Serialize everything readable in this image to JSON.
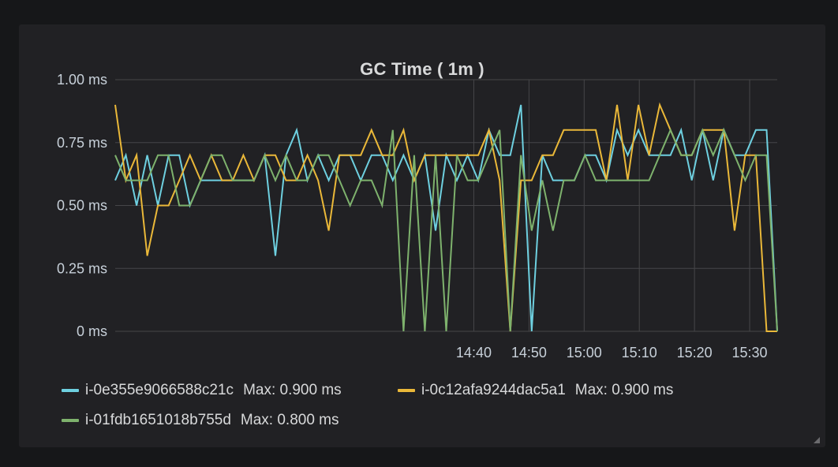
{
  "panel": {
    "title": "GC Time ( 1m )"
  },
  "colors": {
    "background": "#161719",
    "panel": "#212124",
    "grid": "#464649",
    "text": "#d8d9da"
  },
  "legend": [
    {
      "series": "i-0e355e9066588c21c",
      "max_label": "Max: 0.900 ms",
      "color": "#6ed0e0"
    },
    {
      "series": "i-0c12afa9244dac5a1",
      "max_label": "Max: 0.900 ms",
      "color": "#eab839"
    },
    {
      "series": "i-01fdb1651018b755d",
      "max_label": "Max: 0.800 ms",
      "color": "#7eb26d"
    }
  ],
  "chart_data": {
    "type": "line",
    "title": "GC Time ( 1m )",
    "xlabel": "",
    "ylabel": "",
    "ylim": [
      0,
      1
    ],
    "y_ticks": [
      0,
      0.25,
      0.5,
      0.75,
      1.0
    ],
    "y_tick_labels": [
      "0 ms",
      "0.25 ms",
      "0.50 ms",
      "0.75 ms",
      "1.00 ms"
    ],
    "x_ticks": [
      "14:40",
      "14:50",
      "15:00",
      "15:10",
      "15:20",
      "15:30"
    ],
    "x_start": "13:35",
    "x_end": "15:35",
    "grid": true,
    "legend_position": "bottom",
    "series": [
      {
        "name": "i-0e355e9066588c21c",
        "color": "#6ed0e0",
        "values": [
          0.6,
          0.7,
          0.5,
          0.7,
          0.5,
          0.7,
          0.7,
          0.5,
          0.6,
          0.6,
          0.6,
          0.6,
          0.6,
          0.6,
          0.7,
          0.3,
          0.7,
          0.8,
          0.6,
          0.7,
          0.6,
          0.7,
          0.7,
          0.6,
          0.7,
          0.7,
          0.6,
          0.7,
          0.6,
          0.7,
          0.4,
          0.7,
          0.6,
          0.7,
          0.6,
          0.8,
          0.7,
          0.7,
          0.9,
          0.0,
          0.7,
          0.6,
          0.6,
          0.6,
          0.7,
          0.7,
          0.6,
          0.8,
          0.7,
          0.8,
          0.7,
          0.7,
          0.7,
          0.8,
          0.6,
          0.8,
          0.6,
          0.8,
          0.7,
          0.7,
          0.8,
          0.8,
          0.0
        ]
      },
      {
        "name": "i-0c12afa9244dac5a1",
        "color": "#eab839",
        "values": [
          0.9,
          0.6,
          0.7,
          0.3,
          0.5,
          0.5,
          0.6,
          0.7,
          0.6,
          0.7,
          0.6,
          0.6,
          0.7,
          0.6,
          0.7,
          0.7,
          0.6,
          0.6,
          0.7,
          0.6,
          0.4,
          0.7,
          0.7,
          0.7,
          0.8,
          0.7,
          0.7,
          0.8,
          0.6,
          0.7,
          0.7,
          0.7,
          0.7,
          0.7,
          0.7,
          0.8,
          0.6,
          0.0,
          0.6,
          0.6,
          0.7,
          0.7,
          0.8,
          0.8,
          0.8,
          0.8,
          0.6,
          0.9,
          0.6,
          0.9,
          0.7,
          0.9,
          0.8,
          0.7,
          0.7,
          0.8,
          0.8,
          0.8,
          0.4,
          0.7,
          0.7,
          0.0,
          0.0
        ]
      },
      {
        "name": "i-01fdb1651018b755d",
        "color": "#7eb26d",
        "values": [
          0.7,
          0.6,
          0.6,
          0.6,
          0.7,
          0.7,
          0.5,
          0.5,
          0.6,
          0.7,
          0.7,
          0.6,
          0.6,
          0.6,
          0.7,
          0.6,
          0.7,
          0.6,
          0.6,
          0.7,
          0.7,
          0.6,
          0.5,
          0.6,
          0.6,
          0.5,
          0.8,
          0.0,
          0.7,
          0.0,
          0.7,
          0.0,
          0.7,
          0.6,
          0.6,
          0.7,
          0.8,
          0.0,
          0.7,
          0.4,
          0.6,
          0.4,
          0.6,
          0.6,
          0.7,
          0.6,
          0.6,
          0.6,
          0.6,
          0.6,
          0.6,
          0.7,
          0.8,
          0.7,
          0.7,
          0.8,
          0.7,
          0.8,
          0.7,
          0.6,
          0.7,
          0.7,
          0.0
        ]
      }
    ]
  }
}
